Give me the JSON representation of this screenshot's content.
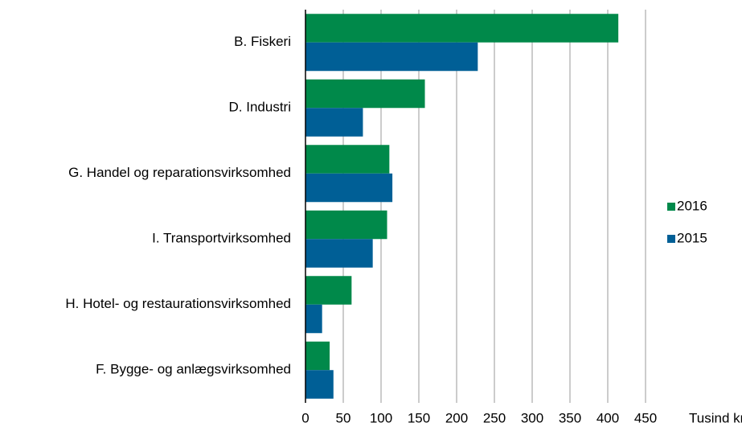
{
  "chart_data": {
    "type": "hbar",
    "categories": [
      "B. Fiskeri",
      "D. Industri",
      "G. Handel og reparationsvirksomhed",
      "I. Transportvirksomhed",
      "H. Hotel- og restaurationsvirksomhed",
      "F. Bygge- og anlægsvirksomhed"
    ],
    "series": [
      {
        "name": "2016",
        "color": "#00894a",
        "values": [
          414,
          158,
          111,
          108,
          61,
          32
        ]
      },
      {
        "name": "2015",
        "color": "#005f96",
        "values": [
          228,
          76,
          115,
          89,
          22,
          37
        ]
      }
    ],
    "xlabel": "Tusind kr.",
    "xlim": [
      0,
      450
    ],
    "xticks": [
      0,
      50,
      100,
      150,
      200,
      250,
      300,
      350,
      400,
      450
    ],
    "grid": true,
    "legend": "right"
  }
}
